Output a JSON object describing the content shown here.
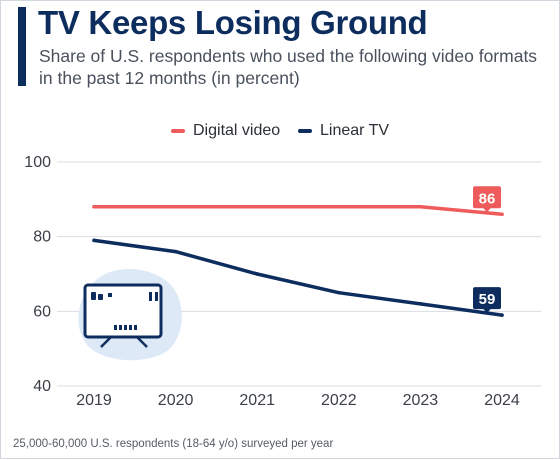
{
  "header": {
    "title": "TV Keeps Losing Ground",
    "subtitle": "Share of U.S. respondents who used the following video formats in the past 12 months (in percent)"
  },
  "footer": {
    "source_note": "25,000-60,000 U.S. respondents (18-64 y/o) surveyed per year"
  },
  "colors": {
    "digital_video": "#ef5b5b",
    "linear_tv": "#0d2d5e",
    "title": "#0d2d5e"
  },
  "icons": {
    "illustration": "television-icon"
  },
  "chart_data": {
    "type": "line",
    "x": [
      "2019",
      "2020",
      "2021",
      "2022",
      "2023",
      "2024"
    ],
    "series": [
      {
        "name": "Digital video",
        "values": [
          88,
          88,
          88,
          88,
          88,
          86
        ],
        "end_label": "86"
      },
      {
        "name": "Linear TV",
        "values": [
          79,
          76,
          70,
          65,
          62,
          59
        ],
        "end_label": "59"
      }
    ],
    "yticks": [
      "40",
      "60",
      "80",
      "100"
    ],
    "ylim": [
      40,
      100
    ],
    "grid": true,
    "legend_position": "top-center"
  }
}
